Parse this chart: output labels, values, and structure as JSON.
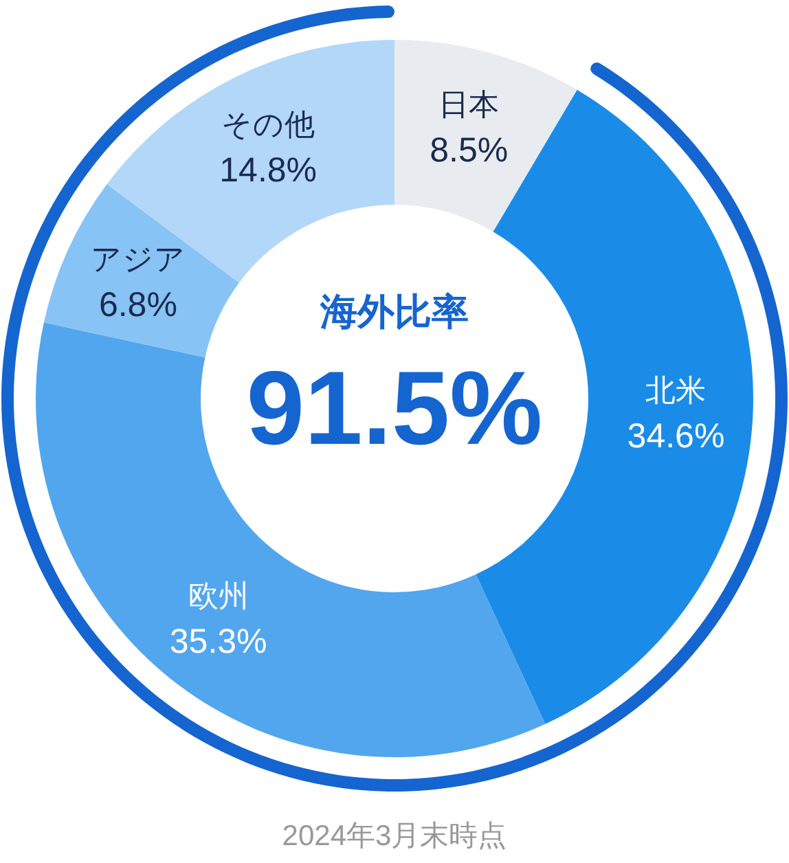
{
  "chart_data": {
    "type": "donut",
    "categories": [
      "日本",
      "北米",
      "欧州",
      "アジア",
      "その他"
    ],
    "values": [
      8.5,
      34.6,
      35.3,
      6.8,
      14.8
    ],
    "colors": [
      "#e8ecf0",
      "#1a8ce8",
      "#52a6ee",
      "#88c3f5",
      "#b3d7f8"
    ],
    "value_labels": [
      "8.5%",
      "34.6%",
      "35.3%",
      "6.8%",
      "14.8%"
    ],
    "annotations": [
      "海外比率",
      "91.5%",
      "2024年3月末時点"
    ]
  }
}
